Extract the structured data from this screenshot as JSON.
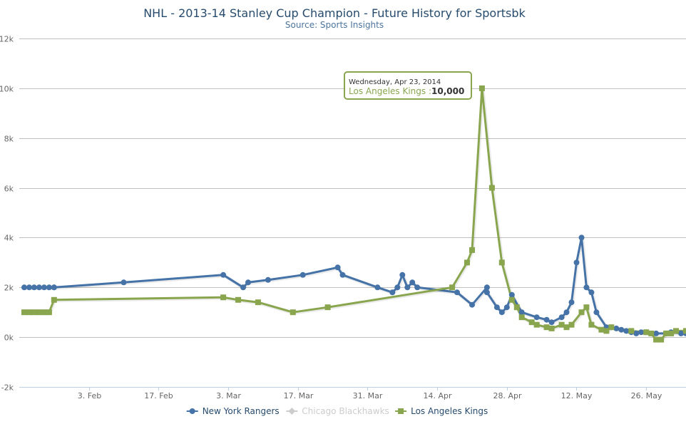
{
  "chart_data": {
    "type": "line",
    "title": "NHL - 2013-14 Stanley Cup Champion - Future History for Sportsbk",
    "subtitle": "Source: Sports Insights",
    "xlabel": "",
    "ylabel": "",
    "x_ticks": [
      "3. Feb",
      "17. Feb",
      "3. Mar",
      "17. Mar",
      "31. Mar",
      "14. Apr",
      "28. Apr",
      "12. May",
      "26. May"
    ],
    "x_tick_dates": [
      "2014-02-03",
      "2014-02-17",
      "2014-03-03",
      "2014-03-17",
      "2014-03-31",
      "2014-04-14",
      "2014-04-28",
      "2014-05-12",
      "2014-05-26"
    ],
    "x_range": [
      "2014-01-20",
      "2014-06-03"
    ],
    "y_ticks": [
      "-2k",
      "0k",
      "2k",
      "4k",
      "6k",
      "8k",
      "10k",
      "12k"
    ],
    "y_tick_values": [
      -2000,
      0,
      2000,
      4000,
      6000,
      8000,
      10000,
      12000
    ],
    "ylim": [
      -2000,
      12000
    ],
    "grid": true,
    "legend_position": "bottom-center",
    "series": [
      {
        "name": "New York Rangers",
        "color": "#4572a7",
        "marker": "circle",
        "visible": true,
        "points": [
          [
            "2014-01-21",
            2000
          ],
          [
            "2014-01-22",
            2000
          ],
          [
            "2014-01-23",
            2000
          ],
          [
            "2014-01-24",
            2000
          ],
          [
            "2014-01-25",
            2000
          ],
          [
            "2014-01-26",
            2000
          ],
          [
            "2014-01-27",
            2000
          ],
          [
            "2014-01-27",
            2000
          ],
          [
            "2014-02-10",
            2200
          ],
          [
            "2014-03-02",
            2500
          ],
          [
            "2014-03-06",
            2000
          ],
          [
            "2014-03-07",
            2200
          ],
          [
            "2014-03-11",
            2300
          ],
          [
            "2014-03-18",
            2500
          ],
          [
            "2014-03-25",
            2800
          ],
          [
            "2014-03-26",
            2500
          ],
          [
            "2014-04-02",
            2000
          ],
          [
            "2014-04-05",
            1800
          ],
          [
            "2014-04-06",
            2000
          ],
          [
            "2014-04-07",
            2500
          ],
          [
            "2014-04-08",
            2000
          ],
          [
            "2014-04-09",
            2200
          ],
          [
            "2014-04-10",
            2000
          ],
          [
            "2014-04-18",
            1800
          ],
          [
            "2014-04-21",
            1300
          ],
          [
            "2014-04-24",
            2000
          ],
          [
            "2014-04-24",
            1800
          ],
          [
            "2014-04-26",
            1200
          ],
          [
            "2014-04-27",
            1000
          ],
          [
            "2014-04-28",
            1200
          ],
          [
            "2014-04-29",
            1700
          ],
          [
            "2014-05-01",
            1000
          ],
          [
            "2014-05-04",
            800
          ],
          [
            "2014-05-06",
            700
          ],
          [
            "2014-05-07",
            600
          ],
          [
            "2014-05-09",
            800
          ],
          [
            "2014-05-10",
            1000
          ],
          [
            "2014-05-11",
            1400
          ],
          [
            "2014-05-12",
            3000
          ],
          [
            "2014-05-13",
            4000
          ],
          [
            "2014-05-14",
            2000
          ],
          [
            "2014-05-15",
            1800
          ],
          [
            "2014-05-16",
            1000
          ],
          [
            "2014-05-18",
            400
          ],
          [
            "2014-05-19",
            400
          ],
          [
            "2014-05-20",
            350
          ],
          [
            "2014-05-21",
            300
          ],
          [
            "2014-05-22",
            250
          ],
          [
            "2014-05-23",
            200
          ],
          [
            "2014-05-24",
            150
          ],
          [
            "2014-05-25",
            200
          ],
          [
            "2014-05-26",
            200
          ],
          [
            "2014-05-28",
            150
          ],
          [
            "2014-05-30",
            150
          ],
          [
            "2014-05-31",
            200
          ],
          [
            "2014-06-02",
            150
          ],
          [
            "2014-06-03",
            150
          ]
        ]
      },
      {
        "name": "Chicago Blackhawks",
        "color": "#c0c0c0",
        "marker": "diamond",
        "visible": false,
        "points": []
      },
      {
        "name": "Los Angeles Kings",
        "color": "#89a54e",
        "marker": "square",
        "visible": true,
        "points": [
          [
            "2014-01-21",
            1000
          ],
          [
            "2014-01-22",
            1000
          ],
          [
            "2014-01-23",
            1000
          ],
          [
            "2014-01-24",
            1000
          ],
          [
            "2014-01-25",
            1000
          ],
          [
            "2014-01-26",
            1000
          ],
          [
            "2014-01-27",
            1500
          ],
          [
            "2014-03-02",
            1600
          ],
          [
            "2014-03-05",
            1500
          ],
          [
            "2014-03-09",
            1400
          ],
          [
            "2014-03-16",
            1000
          ],
          [
            "2014-03-23",
            1200
          ],
          [
            "2014-04-17",
            2000
          ],
          [
            "2014-04-20",
            3000
          ],
          [
            "2014-04-21",
            3500
          ],
          [
            "2014-04-23",
            10000
          ],
          [
            "2014-04-25",
            6000
          ],
          [
            "2014-04-27",
            3000
          ],
          [
            "2014-04-29",
            1500
          ],
          [
            "2014-04-30",
            1200
          ],
          [
            "2014-05-01",
            800
          ],
          [
            "2014-05-03",
            600
          ],
          [
            "2014-05-04",
            500
          ],
          [
            "2014-05-06",
            400
          ],
          [
            "2014-05-07",
            350
          ],
          [
            "2014-05-09",
            500
          ],
          [
            "2014-05-10",
            400
          ],
          [
            "2014-05-11",
            500
          ],
          [
            "2014-05-13",
            1000
          ],
          [
            "2014-05-14",
            1200
          ],
          [
            "2014-05-15",
            500
          ],
          [
            "2014-05-17",
            300
          ],
          [
            "2014-05-18",
            250
          ],
          [
            "2014-05-19",
            400
          ],
          [
            "2014-05-23",
            250
          ],
          [
            "2014-05-26",
            200
          ],
          [
            "2014-05-27",
            150
          ],
          [
            "2014-05-28",
            -100
          ],
          [
            "2014-05-29",
            -100
          ],
          [
            "2014-05-30",
            150
          ],
          [
            "2014-05-31",
            150
          ],
          [
            "2014-06-01",
            250
          ],
          [
            "2014-06-03",
            250
          ]
        ]
      }
    ],
    "tooltip": {
      "date": "Wednesday, Apr 23, 2014",
      "series": "Los Angeles Kings",
      "value": "10,000"
    }
  }
}
